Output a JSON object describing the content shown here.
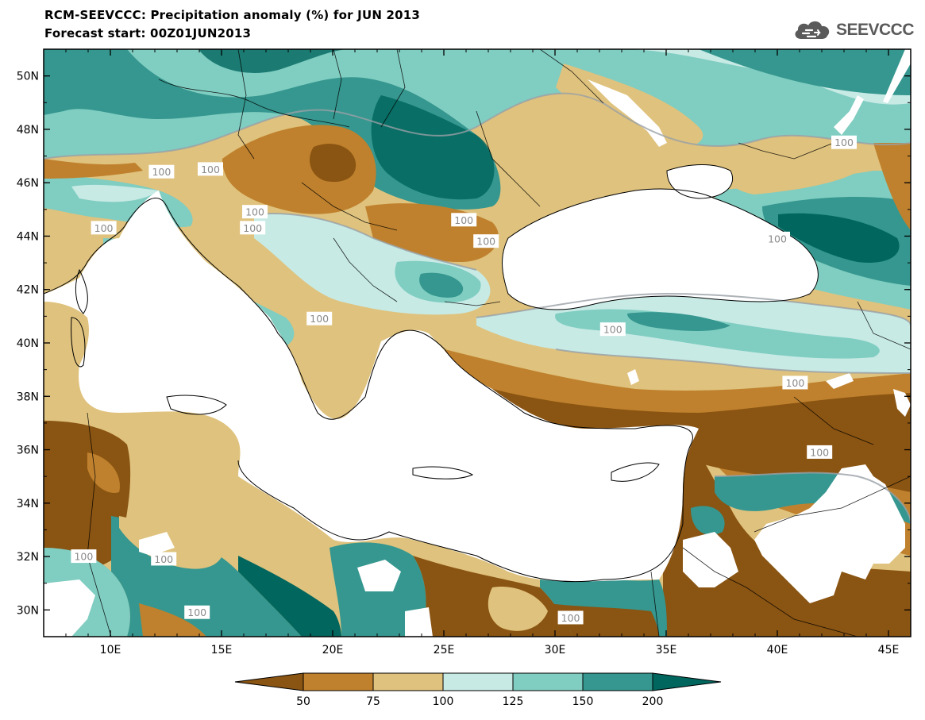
{
  "header": {
    "title_line1": "RCM-SEEVCCC: Precipitation anomaly (%) for JUN 2013",
    "title_line2": "Forecast start: 00Z01JUN2013"
  },
  "logo": {
    "text": "SEEVCCC",
    "icon": "cloud-logo-icon"
  },
  "map": {
    "lon_range": [
      7,
      46
    ],
    "lat_range": [
      29,
      51
    ],
    "lon_ticks": [
      {
        "value": 10,
        "label": "10E"
      },
      {
        "value": 15,
        "label": "15E"
      },
      {
        "value": 20,
        "label": "20E"
      },
      {
        "value": 25,
        "label": "25E"
      },
      {
        "value": 30,
        "label": "30E"
      },
      {
        "value": 35,
        "label": "35E"
      },
      {
        "value": 40,
        "label": "40E"
      },
      {
        "value": 45,
        "label": "45E"
      }
    ],
    "lat_ticks": [
      {
        "value": 30,
        "label": "30N"
      },
      {
        "value": 32,
        "label": "32N"
      },
      {
        "value": 34,
        "label": "34N"
      },
      {
        "value": 36,
        "label": "36N"
      },
      {
        "value": 38,
        "label": "38N"
      },
      {
        "value": 40,
        "label": "40N"
      },
      {
        "value": 42,
        "label": "42N"
      },
      {
        "value": 44,
        "label": "44N"
      },
      {
        "value": 46,
        "label": "46N"
      },
      {
        "value": 48,
        "label": "48N"
      },
      {
        "value": 50,
        "label": "50N"
      }
    ],
    "contour_labels": [
      {
        "lon": 12.3,
        "lat": 46.4,
        "text": "100"
      },
      {
        "lon": 14.5,
        "lat": 46.5,
        "text": "100"
      },
      {
        "lon": 16.5,
        "lat": 44.9,
        "text": "100"
      },
      {
        "lon": 16.4,
        "lat": 44.3,
        "text": "100"
      },
      {
        "lon": 9.7,
        "lat": 44.3,
        "text": "100"
      },
      {
        "lon": 25.9,
        "lat": 44.6,
        "text": "100"
      },
      {
        "lon": 26.9,
        "lat": 43.8,
        "text": "100"
      },
      {
        "lon": 19.4,
        "lat": 40.9,
        "text": "100"
      },
      {
        "lon": 43.0,
        "lat": 47.5,
        "text": "100"
      },
      {
        "lon": 40.0,
        "lat": 43.9,
        "text": "100"
      },
      {
        "lon": 32.6,
        "lat": 40.5,
        "text": "100"
      },
      {
        "lon": 40.8,
        "lat": 38.5,
        "text": "100"
      },
      {
        "lon": 41.9,
        "lat": 35.9,
        "text": "100"
      },
      {
        "lon": 12.4,
        "lat": 31.9,
        "text": "100"
      },
      {
        "lon": 8.8,
        "lat": 32.0,
        "text": "100"
      },
      {
        "lon": 13.9,
        "lat": 29.9,
        "text": "100"
      },
      {
        "lon": 30.7,
        "lat": 29.7,
        "text": "100"
      }
    ]
  },
  "legend": {
    "bins": [
      {
        "label": "<50",
        "color": "#8a5412"
      },
      {
        "label": "50-75",
        "color": "#bf812d"
      },
      {
        "label": "75-100",
        "color": "#dfc27d"
      },
      {
        "label": "100-125",
        "color": "#c7eae5"
      },
      {
        "label": "125-150",
        "color": "#80cdc1"
      },
      {
        "label": "150-200",
        "color": "#35978f"
      },
      {
        "label": ">200",
        "color": "#01665e"
      }
    ],
    "tick_labels": [
      "50",
      "75",
      "100",
      "125",
      "150",
      "200"
    ]
  }
}
